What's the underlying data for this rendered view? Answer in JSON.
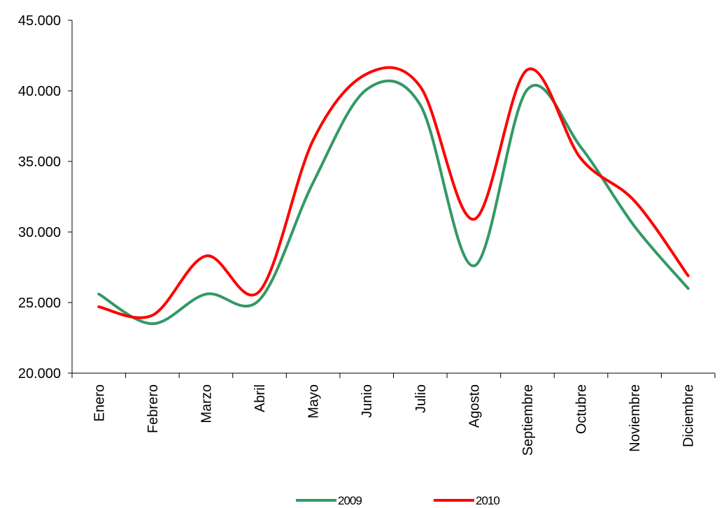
{
  "chart_data": {
    "type": "line",
    "title": "",
    "xlabel": "",
    "ylabel": "",
    "categories": [
      "Enero",
      "Febrero",
      "Marzo",
      "Abril",
      "Mayo",
      "Junio",
      "Julio",
      "Agosto",
      "Septiembre",
      "Octubre",
      "Noviembre",
      "Diciembre"
    ],
    "ylim": [
      20000,
      45000
    ],
    "yticks": [
      20000,
      25000,
      30000,
      35000,
      40000,
      45000
    ],
    "ytick_labels": [
      "20.000",
      "25.000",
      "30.000",
      "35.000",
      "40.000",
      "45.000"
    ],
    "grid": false,
    "legend": "bottom",
    "series": [
      {
        "name": "2009",
        "color": "#339966",
        "values": [
          25600,
          23500,
          25600,
          25200,
          33500,
          40100,
          39000,
          27600,
          40100,
          36000,
          30400,
          26000
        ]
      },
      {
        "name": "2010",
        "color": "#ff0000",
        "values": [
          24700,
          24100,
          28300,
          25800,
          36500,
          41200,
          40300,
          30900,
          41500,
          35200,
          32200,
          26900
        ]
      }
    ]
  }
}
